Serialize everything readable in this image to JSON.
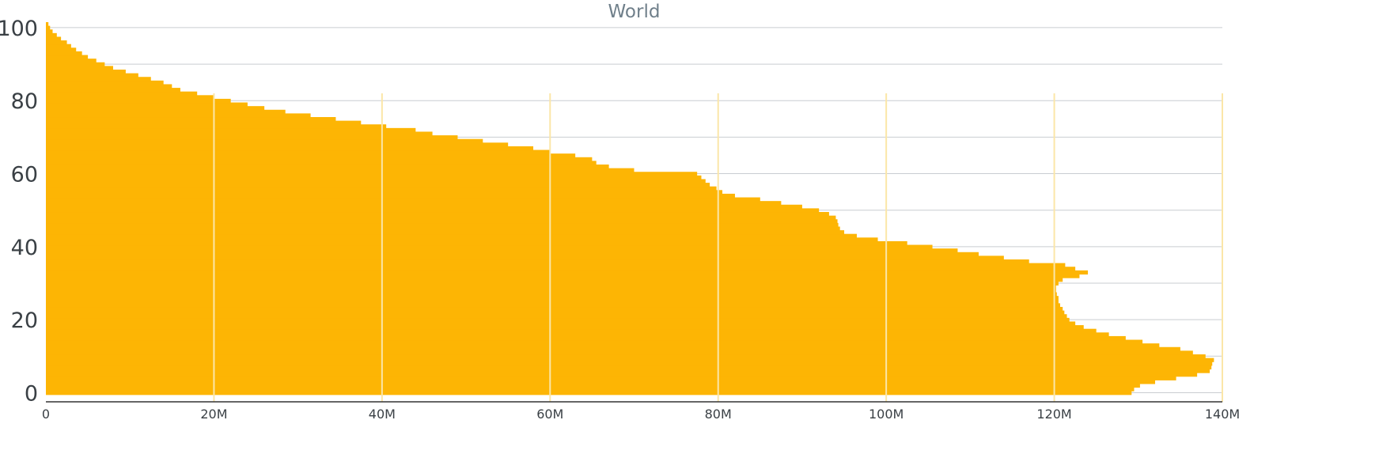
{
  "chart_data": {
    "type": "bar",
    "orientation": "horizontal",
    "title": "World",
    "xlabel": "",
    "ylabel": "",
    "xlim": [
      0,
      140000000
    ],
    "ylim": [
      -2.5,
      101.5
    ],
    "x_ticks": [
      {
        "value": 0,
        "label": "0"
      },
      {
        "value": 20000000,
        "label": "20M"
      },
      {
        "value": 40000000,
        "label": "40M"
      },
      {
        "value": 60000000,
        "label": "60M"
      },
      {
        "value": 80000000,
        "label": "80M"
      },
      {
        "value": 100000000,
        "label": "100M"
      },
      {
        "value": 120000000,
        "label": "120M"
      },
      {
        "value": 140000000,
        "label": "140M"
      }
    ],
    "y_ticks": [
      {
        "value": 0,
        "label": "0"
      },
      {
        "value": 20,
        "label": "20"
      },
      {
        "value": 40,
        "label": "40"
      },
      {
        "value": 60,
        "label": "60"
      },
      {
        "value": 80,
        "label": "80"
      },
      {
        "value": 100,
        "label": "100"
      }
    ],
    "grid": {
      "horizontal": true,
      "vertical": false
    },
    "legend": "none",
    "color": "#fdb504",
    "categories": [
      0,
      1,
      2,
      3,
      4,
      5,
      6,
      7,
      8,
      9,
      10,
      11,
      12,
      13,
      14,
      15,
      16,
      17,
      18,
      19,
      20,
      21,
      22,
      23,
      24,
      25,
      26,
      27,
      28,
      29,
      30,
      31,
      32,
      33,
      34,
      35,
      36,
      37,
      38,
      39,
      40,
      41,
      42,
      43,
      44,
      45,
      46,
      47,
      48,
      49,
      50,
      51,
      52,
      53,
      54,
      55,
      56,
      57,
      58,
      59,
      60,
      61,
      62,
      63,
      64,
      65,
      66,
      67,
      68,
      69,
      70,
      71,
      72,
      73,
      74,
      75,
      76,
      77,
      78,
      79,
      80,
      81,
      82,
      83,
      84,
      85,
      86,
      87,
      88,
      89,
      90,
      91,
      92,
      93,
      94,
      95,
      96,
      97,
      98,
      99,
      100,
      101
    ],
    "values": [
      129200000,
      129500000,
      130200000,
      132000000,
      134500000,
      137000000,
      138500000,
      138700000,
      138800000,
      139000000,
      138000000,
      136500000,
      135000000,
      132500000,
      130500000,
      128500000,
      126500000,
      125000000,
      123500000,
      122500000,
      121800000,
      121500000,
      121200000,
      121000000,
      120700000,
      120500000,
      120500000,
      120300000,
      120200000,
      120200000,
      120500000,
      121000000,
      123000000,
      124000000,
      122500000,
      121300000,
      117000000,
      114000000,
      111000000,
      108500000,
      105500000,
      102500000,
      99000000,
      96500000,
      95000000,
      94500000,
      94300000,
      94200000,
      94000000,
      93200000,
      92000000,
      90000000,
      87500000,
      85000000,
      82000000,
      80500000,
      79800000,
      79000000,
      78500000,
      78000000,
      77500000,
      70000000,
      67000000,
      65500000,
      65000000,
      63000000,
      60000000,
      58000000,
      55000000,
      52000000,
      49000000,
      46000000,
      44000000,
      40500000,
      37500000,
      34500000,
      31500000,
      28500000,
      26000000,
      24000000,
      22000000,
      20000000,
      18000000,
      16000000,
      15000000,
      14000000,
      12500000,
      11000000,
      9500000,
      8000000,
      7000000,
      6000000,
      5000000,
      4300000,
      3600000,
      3000000,
      2500000,
      1800000,
      1300000,
      800000,
      500000,
      300000
    ]
  }
}
